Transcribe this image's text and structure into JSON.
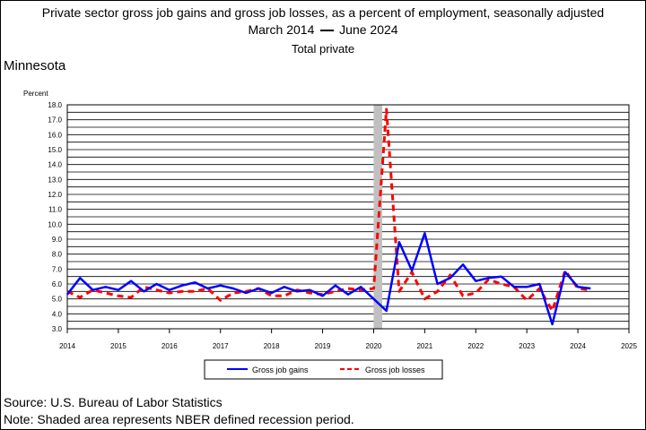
{
  "title_line1": "Private sector gross job gains and gross job losses, as a percent of employment, seasonally adjusted",
  "title_line2_start": "March 2014",
  "title_line2_end": "June 2024",
  "subtitle": "Total private",
  "region": "Minnesota",
  "source": "Source: U.S. Bureau of Labor Statistics",
  "note": "Note: Shaded area represents NBER defined recession period.",
  "chart_data": {
    "type": "line",
    "ylabel": "Percent",
    "ylim": [
      3.0,
      18.0
    ],
    "ystep": 0.5,
    "y_tick_labels": [
      "3.0",
      "4.0",
      "5.0",
      "6.0",
      "7.0",
      "8.0",
      "9.0",
      "10.0",
      "11.0",
      "12.0",
      "13.0",
      "14.0",
      "15.0",
      "16.0",
      "17.0",
      "18.0"
    ],
    "xlim": [
      2014,
      2025
    ],
    "x_tick_labels": [
      "2014",
      "2015",
      "2016",
      "2017",
      "2018",
      "2019",
      "2020",
      "2021",
      "2022",
      "2023",
      "2024",
      "2025"
    ],
    "grid": true,
    "recession": {
      "start": 2020.0,
      "end": 2020.167
    },
    "legend_position": "bottom",
    "colors": {
      "gains": "#0000ff",
      "losses": "#ff0000",
      "recession": "#c0c0c0"
    },
    "series": [
      {
        "name": "Gross job gains",
        "style": "solid",
        "x": [
          2014.0,
          2014.25,
          2014.5,
          2014.75,
          2015.0,
          2015.25,
          2015.5,
          2015.75,
          2016.0,
          2016.25,
          2016.5,
          2016.75,
          2017.0,
          2017.25,
          2017.5,
          2017.75,
          2018.0,
          2018.25,
          2018.5,
          2018.75,
          2019.0,
          2019.25,
          2019.5,
          2019.75,
          2020.0,
          2020.25,
          2020.5,
          2020.75,
          2021.0,
          2021.25,
          2021.5,
          2021.75,
          2022.0,
          2022.25,
          2022.5,
          2022.75,
          2023.0,
          2023.25,
          2023.5,
          2023.75,
          2024.0,
          2024.25
        ],
        "values": [
          5.3,
          6.4,
          5.6,
          5.8,
          5.6,
          6.2,
          5.5,
          6.0,
          5.6,
          5.9,
          6.1,
          5.7,
          5.9,
          5.7,
          5.4,
          5.7,
          5.4,
          5.8,
          5.5,
          5.6,
          5.2,
          5.9,
          5.3,
          5.8,
          5.0,
          4.2,
          8.8,
          6.9,
          9.4,
          6.0,
          6.4,
          7.3,
          6.2,
          6.4,
          6.5,
          5.8,
          5.8,
          6.0,
          3.3,
          6.8,
          5.8,
          5.7
        ]
      },
      {
        "name": "Gross job losses",
        "style": "dashed",
        "x": [
          2014.0,
          2014.25,
          2014.5,
          2014.75,
          2015.0,
          2015.25,
          2015.5,
          2015.75,
          2016.0,
          2016.25,
          2016.5,
          2016.75,
          2017.0,
          2017.25,
          2017.5,
          2017.75,
          2018.0,
          2018.25,
          2018.5,
          2018.75,
          2019.0,
          2019.25,
          2019.5,
          2019.75,
          2020.0,
          2020.25,
          2020.5,
          2020.75,
          2021.0,
          2021.25,
          2021.5,
          2021.75,
          2022.0,
          2022.25,
          2022.5,
          2022.75,
          2023.0,
          2023.25,
          2023.5,
          2023.75,
          2024.0,
          2024.25
        ],
        "values": [
          5.5,
          5.1,
          5.6,
          5.4,
          5.2,
          5.1,
          5.8,
          5.6,
          5.4,
          5.5,
          5.5,
          5.7,
          4.9,
          5.4,
          5.5,
          5.7,
          5.2,
          5.2,
          5.6,
          5.4,
          5.3,
          5.5,
          5.7,
          5.6,
          5.7,
          17.7,
          5.5,
          6.8,
          5.0,
          5.5,
          6.6,
          5.2,
          5.4,
          6.3,
          6.0,
          5.8,
          4.9,
          5.7,
          4.2,
          6.9,
          5.7,
          5.6
        ]
      }
    ]
  }
}
